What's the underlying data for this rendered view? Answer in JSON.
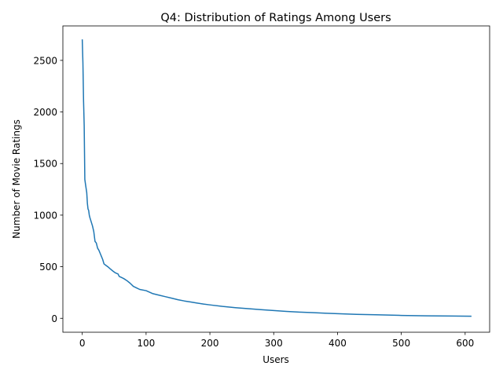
{
  "chart_data": {
    "type": "line",
    "title": "Q4: Distribution of Ratings Among Users",
    "xlabel": "Users",
    "ylabel": "Number of Movie Ratings",
    "xlim": [
      -30.4,
      638.4
    ],
    "ylim": [
      -135,
      2834
    ],
    "xticks": [
      0,
      100,
      200,
      300,
      400,
      500,
      600
    ],
    "yticks": [
      0,
      500,
      1000,
      1500,
      2000,
      2500
    ],
    "grid": false,
    "series": [
      {
        "color": "#1f77b4",
        "x": [
          0,
          1,
          2,
          3,
          4,
          5,
          6,
          7,
          8,
          9,
          10,
          11,
          12,
          14,
          16,
          18,
          20,
          22,
          24,
          26,
          28,
          30,
          32,
          34,
          36,
          40,
          44,
          48,
          52,
          56,
          58,
          60,
          65,
          70,
          75,
          80,
          85,
          90,
          100,
          110,
          120,
          130,
          140,
          150,
          160,
          170,
          180,
          190,
          200,
          220,
          240,
          260,
          280,
          300,
          320,
          340,
          360,
          380,
          400,
          430,
          460,
          500,
          540,
          580,
          609
        ],
        "y": [
          2698,
          2478,
          2108,
          1868,
          1346,
          1302,
          1260,
          1218,
          1115,
          1060,
          1046,
          1000,
          975,
          935,
          895,
          842,
          745,
          730,
          680,
          660,
          630,
          600,
          570,
          528,
          518,
          500,
          478,
          458,
          440,
          430,
          405,
          400,
          385,
          365,
          340,
          310,
          295,
          280,
          268,
          240,
          225,
          210,
          195,
          180,
          168,
          158,
          148,
          138,
          130,
          115,
          103,
          93,
          84,
          75,
          67,
          60,
          55,
          50,
          45,
          38,
          34,
          28,
          24,
          22,
          20
        ]
      }
    ]
  }
}
